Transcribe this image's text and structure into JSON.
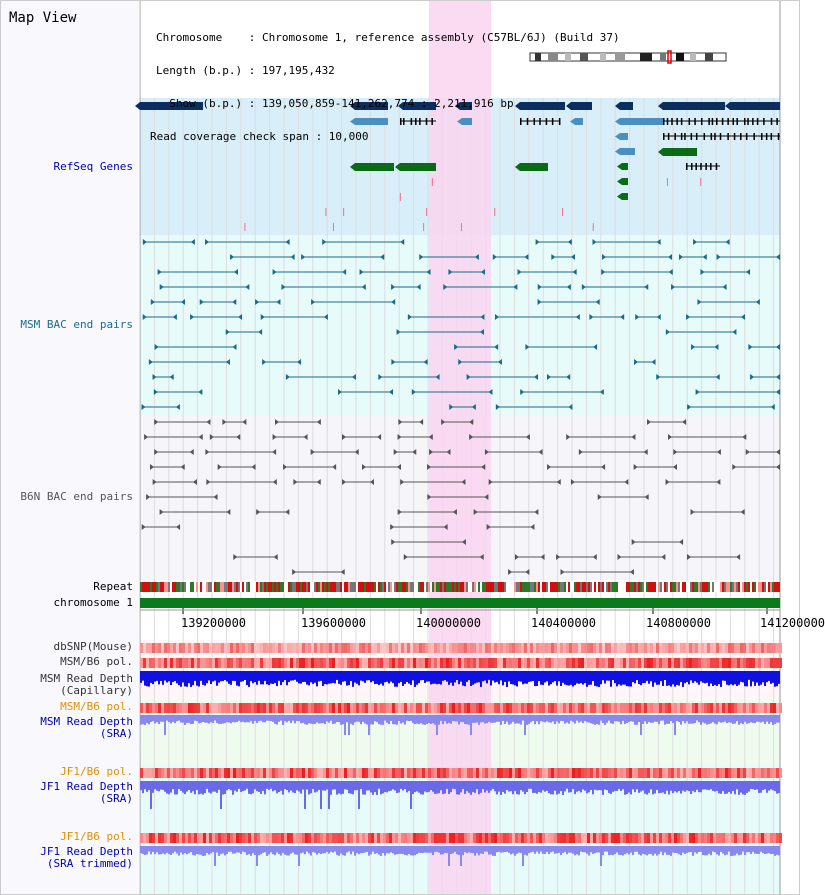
{
  "title": "Map View",
  "header": {
    "chromosome": "Chromosome    : Chromosome 1, reference assembly (C57BL/6J) (Build 37)",
    "length": "Length (b.p.) : 197,195,432",
    "show": "  Show (b.p.) : 139,050,859-141,262,774 : 2,211,916 bp",
    "span": "Read coverage check span : 10,000"
  },
  "tracks": {
    "refseq": "RefSeq Genes",
    "msm_bac": "MSM BAC end pairs",
    "b6n_bac": "B6N BAC end pairs",
    "repeat": "Repeat",
    "chromosome": "chromosome 1",
    "dbsnp": "dbSNP(Mouse)",
    "msm_b6_pol": "MSM/B6 pol.",
    "msm_depth_cap": "MSM Read Depth\n(Capillary)",
    "msm_b6_pol2": "MSM/B6 pol.",
    "msm_depth_sra": "MSM Read Depth\n(SRA)",
    "jf1_b6_pol": "JF1/B6 pol.",
    "jf1_depth_sra": "JF1 Read Depth\n(SRA)",
    "jf1_b6_pol2": "JF1/B6 pol.",
    "jf1_depth_trim": "JF1 Read Depth\n(SRA trimmed)"
  },
  "axis": {
    "ticks": [
      "139200000",
      "139600000",
      "140000000",
      "140400000",
      "140800000",
      "141200000"
    ]
  },
  "colors": {
    "refseq_bg": "#d8eef9",
    "msm_bg": "#e8fbfb",
    "highlight": "#f9d5f0",
    "gene_dark": "#0b2e5f",
    "gene_mid": "#4b8fc0",
    "gene_green": "#0a6a16",
    "msm_line": "#1a6a8a",
    "b6n_line": "#555555",
    "orange_label": "#e09000",
    "blue_label": "#0000aa"
  }
}
